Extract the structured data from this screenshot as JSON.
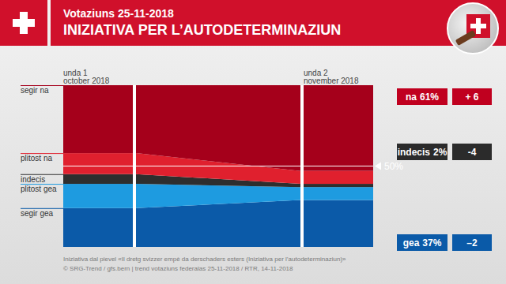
{
  "chart_data": {
    "type": "stacked_area",
    "subtitle": "Votaziuns 25-11-2018",
    "title": "INIZIATIVA PER L’AUTODETERMINAZIUN",
    "categories": [
      "unda 1",
      "unda 2"
    ],
    "category_sublabels": [
      "october 2018",
      "november 2018"
    ],
    "ylim": [
      0,
      100
    ],
    "stacked": true,
    "tick_labels": false,
    "series": [
      {
        "name": "segir na",
        "color": "#a5001b",
        "values": [
          42,
          53
        ]
      },
      {
        "name": "plitost na",
        "color": "#e0202e",
        "values": [
          13,
          8
        ]
      },
      {
        "name": "indecis",
        "color": "#2e2e2e",
        "values": [
          6,
          2
        ]
      },
      {
        "name": "plitost gea",
        "color": "#1e9be0",
        "values": [
          15,
          8
        ]
      },
      {
        "name": "segir gea",
        "color": "#0b5aa8",
        "values": [
          24,
          29
        ]
      }
    ],
    "reference": {
      "value": 50,
      "label": "50%"
    },
    "summary": [
      {
        "label": "na",
        "value": 61,
        "value_label": "61%",
        "change": 6,
        "change_label": "+ 6",
        "color": "#c0001f"
      },
      {
        "label": "indecis",
        "value": 2,
        "value_label": "2%",
        "change": -4,
        "change_label": "-4",
        "color": "#2b2b2b"
      },
      {
        "label": "gea",
        "value": 37,
        "value_label": "37%",
        "change": -2,
        "change_label": "–2",
        "color": "#0a5aa8"
      }
    ],
    "notes": [
      "Iniziativa dal pievel «Il dretg svizzer empè da derschaders esters (Iniziativa per l’autodeterminaziun)»",
      "© SRG-Trend / gfs.bern | trend votaziuns federalas 25-11-2018 / RTR, 14-11-2018"
    ]
  }
}
